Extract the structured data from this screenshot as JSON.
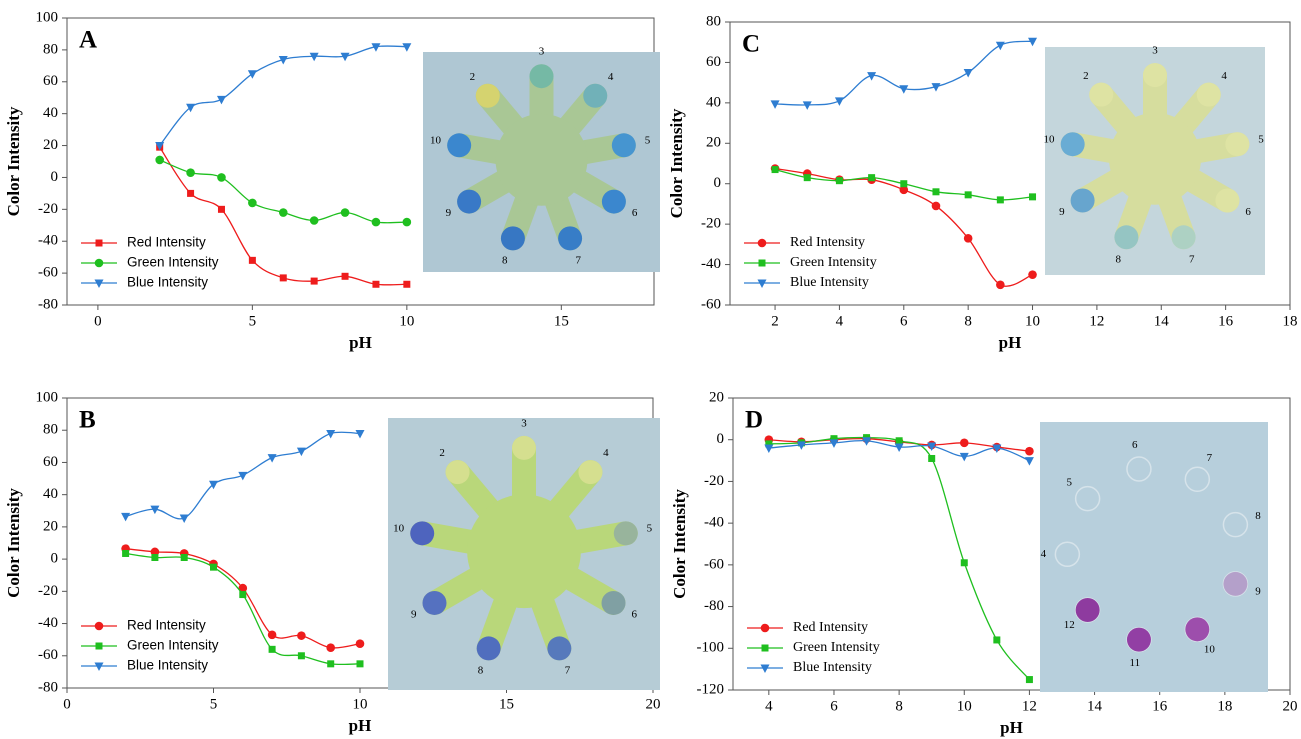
{
  "chart_data": [
    {
      "type": "line",
      "panel_label": "A",
      "xlabel": "pH",
      "ylabel": "Color Intensity",
      "x": [
        2,
        3,
        4,
        5,
        6,
        7,
        8,
        9,
        10
      ],
      "series": [
        {
          "name": "Red Intensity",
          "color": "#ee1c1c",
          "marker": "square",
          "values": [
            19,
            -10,
            -20,
            -52,
            -63,
            -65,
            -62,
            -67,
            -67
          ]
        },
        {
          "name": "Green Intensity",
          "color": "#1fbf1f",
          "marker": "circle",
          "values": [
            11,
            3,
            0,
            -16,
            -22,
            -27,
            -22,
            -28,
            -28
          ]
        },
        {
          "name": "Blue Intensity",
          "color": "#2e7dd1",
          "marker": "triangle-down",
          "values": [
            20,
            44,
            49,
            65,
            74,
            76,
            76,
            82,
            82
          ]
        }
      ],
      "xlim": [
        -1,
        18
      ],
      "ylim": [
        -80,
        100
      ],
      "xticks": [
        0,
        5,
        10,
        15
      ],
      "yticks": [
        -80,
        -60,
        -40,
        -20,
        0,
        20,
        40,
        60,
        80,
        100
      ],
      "legend": "lower left",
      "inset_labels": [
        "2",
        "3",
        "4",
        "5",
        "6",
        "7",
        "8",
        "9",
        "10"
      ]
    },
    {
      "type": "line",
      "panel_label": "C",
      "xlabel": "pH",
      "ylabel": "Color Intensity",
      "x": [
        2,
        3,
        4,
        5,
        6,
        7,
        8,
        9,
        10
      ],
      "series": [
        {
          "name": "Red Intensity",
          "color": "#ee1c1c",
          "marker": "circle",
          "values": [
            7.5,
            5,
            2,
            2,
            -3,
            -11,
            -27,
            -50,
            -45
          ]
        },
        {
          "name": "Green Intensity",
          "color": "#1fbf1f",
          "marker": "square",
          "values": [
            7,
            3,
            1.5,
            3,
            0,
            -4,
            -5.5,
            -8,
            -6.5
          ]
        },
        {
          "name": "Blue Intensity",
          "color": "#2e7dd1",
          "marker": "triangle-down",
          "values": [
            39.5,
            39,
            41,
            53.5,
            47,
            48,
            55,
            68.5,
            70.5
          ]
        }
      ],
      "xlim": [
        0.6,
        18
      ],
      "ylim": [
        -60,
        80
      ],
      "xticks": [
        2,
        4,
        6,
        8,
        10,
        12,
        14,
        16,
        18
      ],
      "yticks": [
        -60,
        -40,
        -20,
        0,
        20,
        40,
        60,
        80
      ],
      "legend": "lower left",
      "inset_labels": [
        "2",
        "3",
        "4",
        "5",
        "6",
        "7",
        "8",
        "9",
        "10"
      ]
    },
    {
      "type": "line",
      "panel_label": "B",
      "xlabel": "pH",
      "ylabel": "Color Intensity",
      "x": [
        2,
        3,
        4,
        5,
        6,
        7,
        8,
        9,
        10
      ],
      "series": [
        {
          "name": "Red Intensity",
          "color": "#ee1c1c",
          "marker": "circle",
          "values": [
            6.5,
            4.5,
            3.5,
            -3,
            -18,
            -47,
            -47.5,
            -55,
            -52.5
          ]
        },
        {
          "name": "Green Intensity",
          "color": "#1fbf1f",
          "marker": "square",
          "values": [
            3.5,
            1,
            1,
            -5,
            -22,
            -56,
            -60,
            -65,
            -65
          ]
        },
        {
          "name": "Blue Intensity",
          "color": "#2e7dd1",
          "marker": "triangle-down",
          "values": [
            26.5,
            31,
            25.5,
            46.5,
            52,
            63,
            67,
            78,
            78
          ]
        }
      ],
      "xlim": [
        0,
        20
      ],
      "ylim": [
        -80,
        100
      ],
      "xticks": [
        0,
        5,
        10,
        15,
        20
      ],
      "yticks": [
        -80,
        -60,
        -40,
        -20,
        0,
        20,
        40,
        60,
        80,
        100
      ],
      "legend": "lower left",
      "inset_labels": [
        "2",
        "3",
        "4",
        "5",
        "6",
        "7",
        "8",
        "9",
        "10"
      ]
    },
    {
      "type": "line",
      "panel_label": "D",
      "xlabel": "pH",
      "ylabel": "Color Intensity",
      "x": [
        4,
        5,
        6,
        7,
        8,
        9,
        10,
        11,
        12
      ],
      "series": [
        {
          "name": "Red Intensity",
          "color": "#ee1c1c",
          "marker": "circle",
          "values": [
            0,
            -1,
            0,
            0.5,
            -1,
            -2.5,
            -1.5,
            -3.5,
            -5.5
          ]
        },
        {
          "name": "Green Intensity",
          "color": "#1fbf1f",
          "marker": "square",
          "values": [
            -2,
            -1.5,
            0.5,
            1,
            -0.5,
            -9,
            -59,
            -96,
            -115
          ]
        },
        {
          "name": "Blue Intensity",
          "color": "#2e7dd1",
          "marker": "triangle-down",
          "values": [
            -4,
            -2.5,
            -1.5,
            -0.5,
            -3.5,
            -3,
            -8,
            -4,
            -10
          ]
        }
      ],
      "xlim": [
        2.9,
        20
      ],
      "ylim": [
        -120,
        20
      ],
      "xticks": [
        4,
        6,
        8,
        10,
        12,
        14,
        16,
        18,
        20
      ],
      "yticks": [
        -120,
        -100,
        -80,
        -60,
        -40,
        -20,
        0,
        20
      ],
      "legend": "lower left",
      "inset_labels": [
        "4",
        "5",
        "6",
        "7",
        "8",
        "9",
        "10",
        "11",
        "12"
      ]
    }
  ]
}
